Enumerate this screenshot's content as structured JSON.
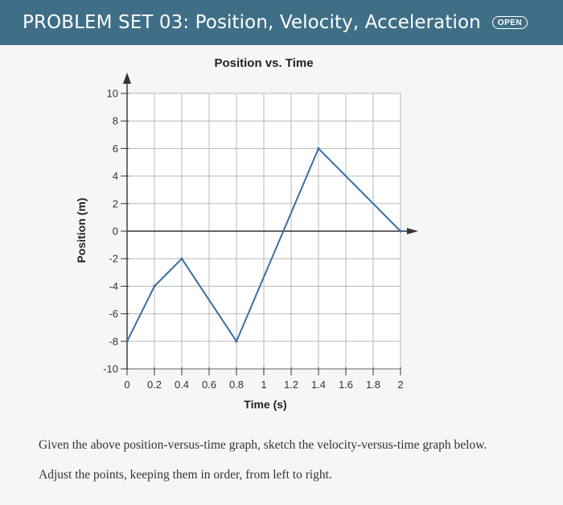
{
  "header": {
    "title": "PROBLEM SET 03: Position, Velocity, Acceleration",
    "badge": "OPEN",
    "background": "#3f6f87"
  },
  "chart_data": {
    "type": "line",
    "title": "Position vs. Time",
    "xlabel": "Time (s)",
    "ylabel": "Position (m)",
    "xlim": [
      0,
      2
    ],
    "ylim": [
      -10,
      10
    ],
    "x_ticks": [
      "0",
      "0.2",
      "0.4",
      "0.6",
      "0.8",
      "1",
      "1.2",
      "1.4",
      "1.6",
      "1.8",
      "2"
    ],
    "y_ticks": [
      "10",
      "8",
      "6",
      "4",
      "2",
      "0",
      "-2",
      "-4",
      "-6",
      "-8",
      "-10"
    ],
    "grid": true,
    "series": [
      {
        "x": [
          0,
          0.2,
          0.4,
          0.8,
          1.4,
          2
        ],
        "y": [
          -8,
          -4,
          -2,
          -8,
          6,
          0
        ],
        "color": "#3a6ea5"
      }
    ]
  },
  "instructions": {
    "line1": "Given the above position-versus-time graph, sketch the velocity-versus-time graph below.",
    "line2": "Adjust the points, keeping them in order, from left to right."
  }
}
